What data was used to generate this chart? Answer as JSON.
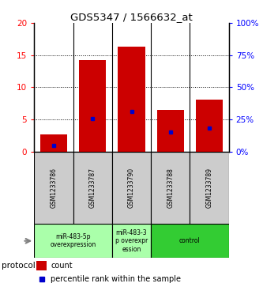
{
  "title": "GDS5347 / 1566632_at",
  "samples": [
    "GSM1233786",
    "GSM1233787",
    "GSM1233790",
    "GSM1233788",
    "GSM1233789"
  ],
  "counts": [
    2.7,
    14.2,
    16.3,
    6.5,
    8.1
  ],
  "percentile_ranks": [
    1.0,
    5.1,
    6.2,
    3.0,
    3.6
  ],
  "ylim_left": [
    0,
    20
  ],
  "ylim_right": [
    0,
    100
  ],
  "yticks_left": [
    0,
    5,
    10,
    15,
    20
  ],
  "yticks_right": [
    0,
    25,
    50,
    75,
    100
  ],
  "ytick_labels_left": [
    "0",
    "5",
    "10",
    "15",
    "20"
  ],
  "ytick_labels_right": [
    "0%",
    "25%",
    "50%",
    "75%",
    "100%"
  ],
  "group_label_1": "miR-483-5p\noverexpression",
  "group_label_2": "miR-483-3\np overexpr\nession",
  "group_label_3": "control",
  "group_color_light": "#aaffaa",
  "group_color_dark": "#33cc33",
  "bar_color": "#cc0000",
  "marker_color": "#0000cc",
  "label_bg_color": "#cccccc",
  "protocol_label": "protocol",
  "legend_count": "count",
  "legend_percentile": "percentile rank within the sample",
  "bar_width": 0.7
}
